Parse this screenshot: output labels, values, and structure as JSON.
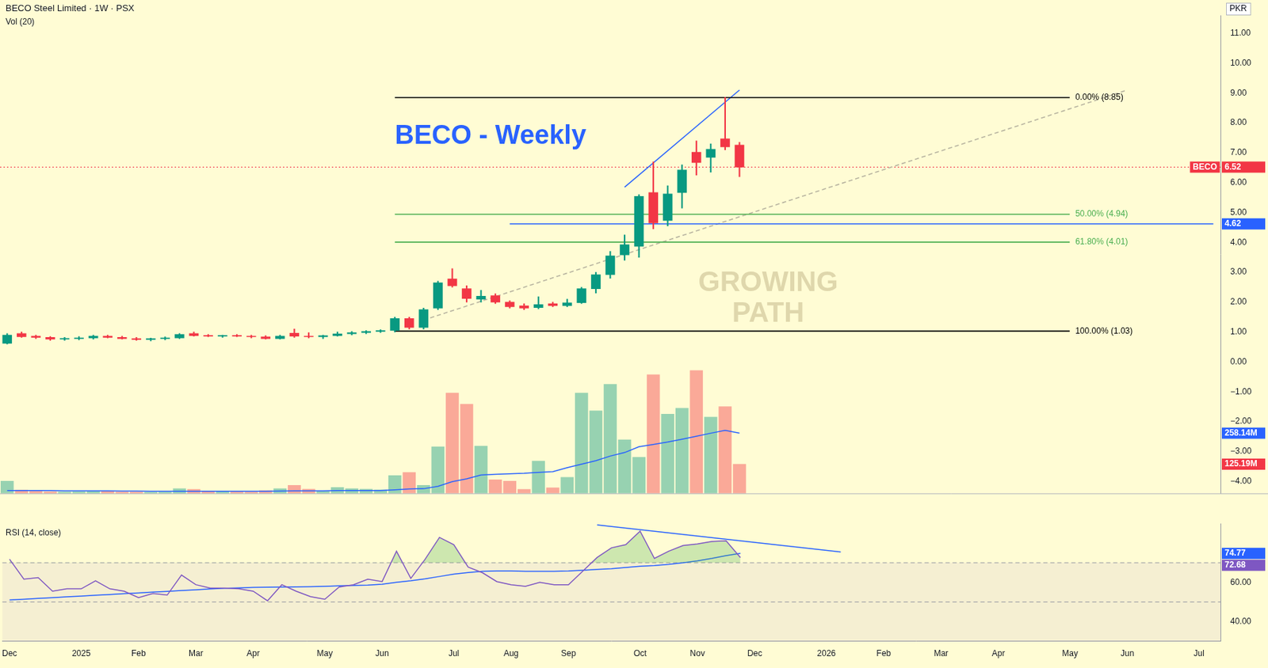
{
  "chart_data": [
    {
      "type": "candlestick",
      "title": "BECO - Weekly",
      "subtitle": "BECO Steel Limited · 1W · PSX",
      "ylabel": "PKR",
      "watermark": "GROWING PATH",
      "tick_labels": "y",
      "grid": false,
      "categories": [
        "Dec",
        null,
        null,
        null,
        null,
        "2025",
        null,
        null,
        null,
        "Feb",
        null,
        null,
        null,
        "Mar",
        null,
        null,
        null,
        "Apr",
        null,
        null,
        null,
        null,
        "May",
        null,
        null,
        null,
        "Jun",
        null,
        null,
        null,
        null,
        "Jul",
        null,
        null,
        null,
        "Aug",
        null,
        null,
        null,
        "Sep",
        null,
        null,
        null,
        null,
        "Oct",
        null,
        null,
        null,
        "Nov",
        null,
        null,
        null,
        "Dec",
        null,
        null,
        null,
        null,
        "2026",
        null,
        null,
        null,
        "Feb",
        null,
        null,
        null,
        "Mar",
        null,
        null,
        null,
        "Apr",
        null,
        null,
        null,
        null,
        "May",
        null,
        null,
        null,
        "Jun",
        null,
        null,
        null,
        null,
        "Jul",
        null
      ],
      "ylim": [
        -4.4,
        11.6
      ],
      "yticks": [
        {
          "value": -4,
          "label": "−4.00"
        },
        {
          "value": -3,
          "label": "−3.00"
        },
        {
          "value": -2,
          "label": "−2.00"
        },
        {
          "value": -1,
          "label": "−1.00"
        },
        {
          "value": 0,
          "label": "0.00"
        },
        {
          "value": 1,
          "label": "1.00"
        },
        {
          "value": 2,
          "label": "2.00"
        },
        {
          "value": 3,
          "label": "3.00"
        },
        {
          "value": 4,
          "label": "4.00"
        },
        {
          "value": 5,
          "label": "5.00"
        },
        {
          "value": 6,
          "label": "6.00"
        },
        {
          "value": 7,
          "label": "7.00"
        },
        {
          "value": 8,
          "label": "8.00"
        },
        {
          "value": 9,
          "label": "9.00"
        },
        {
          "value": 10,
          "label": "10.00"
        },
        {
          "value": 11,
          "label": "11.00"
        }
      ],
      "y2lim": [
        0,
        2050
      ],
      "series": [
        {
          "name": "BECO",
          "type": "candlestick",
          "color": {
            "up": "#089981",
            "down": "#f23645"
          },
          "end_label": "6.52",
          "open": [
            0.62,
            0.95,
            0.86,
            0.82,
            0.76,
            0.78,
            0.8,
            0.86,
            0.82,
            0.78,
            0.75,
            0.78,
            0.8,
            0.95,
            0.88,
            0.86,
            0.88,
            0.86,
            0.84,
            0.78,
            0.96,
            0.86,
            0.84,
            0.88,
            0.94,
            0.98,
            1.02,
            1.05,
            1.45,
            1.15,
            1.8,
            2.78,
            2.45,
            2.1,
            2.22,
            2.0,
            1.88,
            1.82,
            1.95,
            1.88,
            1.98,
            2.45,
            2.92,
            3.58,
            3.87,
            5.67,
            4.73,
            5.67,
            7.02,
            6.85,
            7.47,
            7.26,
            null,
            null,
            null,
            null,
            null,
            null,
            null,
            null,
            null,
            null,
            null,
            null,
            null,
            null,
            null,
            null,
            null,
            null,
            null,
            null,
            null,
            null,
            null,
            null,
            null,
            null,
            null,
            null,
            null,
            null,
            null,
            null,
            null
          ],
          "high": [
            0.95,
            1.0,
            0.9,
            0.85,
            0.82,
            0.85,
            0.9,
            0.9,
            0.86,
            0.82,
            0.8,
            0.84,
            0.95,
            1.0,
            0.92,
            0.9,
            0.92,
            0.9,
            0.88,
            0.9,
            1.1,
            0.98,
            0.9,
            1.0,
            1.02,
            1.05,
            1.08,
            1.5,
            1.5,
            1.8,
            2.7,
            3.12,
            2.55,
            2.4,
            2.28,
            2.05,
            1.95,
            2.18,
            2.0,
            2.1,
            2.5,
            3.0,
            3.7,
            4.25,
            5.6,
            6.7,
            5.9,
            6.6,
            7.4,
            7.3,
            8.85,
            7.35,
            null,
            null,
            null,
            null,
            null,
            null,
            null,
            null,
            null,
            null,
            null,
            null,
            null,
            null,
            null,
            null,
            null,
            null,
            null,
            null,
            null,
            null,
            null,
            null,
            null,
            null,
            null,
            null,
            null,
            null,
            null,
            null,
            null
          ],
          "low": [
            0.6,
            0.82,
            0.78,
            0.72,
            0.72,
            0.74,
            0.76,
            0.8,
            0.76,
            0.72,
            0.7,
            0.74,
            0.78,
            0.86,
            0.84,
            0.82,
            0.84,
            0.8,
            0.76,
            0.76,
            0.82,
            0.8,
            0.78,
            0.86,
            0.9,
            0.94,
            0.98,
            1.0,
            1.1,
            1.1,
            1.75,
            2.5,
            2.0,
            2.0,
            1.95,
            1.8,
            1.75,
            1.78,
            1.85,
            1.85,
            1.95,
            2.3,
            2.8,
            3.4,
            3.5,
            4.45,
            4.55,
            5.15,
            6.25,
            6.35,
            7.1,
            6.2,
            null,
            null,
            null,
            null,
            null,
            null,
            null,
            null,
            null,
            null,
            null,
            null,
            null,
            null,
            null,
            null,
            null,
            null,
            null,
            null,
            null,
            null,
            null,
            null,
            null,
            null,
            null,
            null,
            null,
            null,
            null,
            null,
            null
          ],
          "close": [
            0.9,
            0.84,
            0.82,
            0.76,
            0.78,
            0.8,
            0.86,
            0.82,
            0.78,
            0.75,
            0.78,
            0.8,
            0.92,
            0.88,
            0.86,
            0.88,
            0.86,
            0.84,
            0.78,
            0.86,
            0.86,
            0.84,
            0.88,
            0.94,
            0.98,
            1.02,
            1.05,
            1.45,
            1.15,
            1.75,
            2.65,
            2.55,
            2.12,
            2.2,
            2.0,
            1.85,
            1.8,
            1.92,
            1.88,
            1.98,
            2.45,
            2.92,
            3.55,
            3.92,
            5.54,
            4.65,
            5.62,
            6.42,
            6.67,
            7.12,
            7.2,
            6.52,
            null,
            null,
            null,
            null,
            null,
            null,
            null,
            null,
            null,
            null,
            null,
            null,
            null,
            null,
            null,
            null,
            null,
            null,
            null,
            null,
            null,
            null,
            null,
            null,
            null,
            null,
            null,
            null,
            null,
            null,
            null,
            null,
            null
          ]
        },
        {
          "name": "Vol (20)",
          "type": "bar",
          "axis": "y2",
          "end_label": "125.19M",
          "values": [
            52,
            14,
            10,
            7,
            6,
            7,
            10,
            8,
            6,
            6,
            5,
            6,
            20,
            17,
            8,
            10,
            7,
            6,
            12,
            20,
            34,
            18,
            10,
            25,
            20,
            18,
            15,
            76,
            90,
            34,
            200,
            430,
            382,
            203,
            58,
            52,
            17,
            138,
            24,
            69,
            430,
            354,
            468,
            230,
            155,
            509,
            340,
            365,
            527,
            327,
            372,
            125.19,
            null,
            null,
            null,
            null,
            null,
            null,
            null,
            null,
            null,
            null,
            null,
            null,
            null,
            null,
            null,
            null,
            null,
            null,
            null,
            null,
            null,
            null,
            null,
            null,
            null,
            null,
            null,
            null,
            null,
            null,
            null,
            null,
            null
          ]
        },
        {
          "type": "line",
          "axis": "y2",
          "color": "#2962ff",
          "end_label": "258.14M",
          "values": [
            12,
            12,
            12,
            12,
            11,
            11,
            11,
            11,
            10,
            10,
            9,
            9,
            9,
            9,
            9,
            9,
            9,
            9,
            9,
            10,
            11,
            11,
            11,
            12,
            12,
            12,
            12,
            15,
            19,
            20,
            30,
            50,
            62,
            79,
            82,
            84,
            86,
            90,
            93,
            110,
            125,
            140,
            160,
            175,
            200,
            210,
            220,
            232,
            245,
            258,
            270,
            258.14,
            null,
            null,
            null,
            null,
            null,
            null,
            null,
            null,
            null,
            null,
            null,
            null,
            null,
            null,
            null,
            null,
            null,
            null,
            null,
            null,
            null,
            null,
            null,
            null,
            null,
            null,
            null,
            null,
            null,
            null,
            null,
            null,
            null
          ]
        }
      ],
      "lines": [
        {
          "label": "0.00% (8.85)",
          "from": [
            27,
            8.85
          ],
          "to": [
            74,
            8.85
          ],
          "color": "#000000"
        },
        {
          "label": "50.00% (4.94)",
          "from": [
            27,
            4.94
          ],
          "to": [
            74,
            4.94
          ],
          "color": "#4caf50"
        },
        {
          "label": "61.80% (4.01)",
          "from": [
            27,
            4.01
          ],
          "to": [
            74,
            4.01
          ],
          "color": "#4caf50"
        },
        {
          "label": "100.00% (1.03)",
          "from": [
            27,
            1.03
          ],
          "to": [
            74,
            1.03
          ],
          "color": "#000000"
        },
        {
          "from": [
            35,
            4.62
          ],
          "to": [
            84,
            4.62
          ],
          "color": "#2962ff",
          "end_label": "4.62"
        },
        {
          "from": [
            43,
            5.85
          ],
          "to": [
            51,
            9.1
          ],
          "color": "#2962ff"
        },
        {
          "from": [
            29,
            1.4
          ],
          "to": [
            78,
            9.1
          ],
          "color": "#b8b4a0",
          "line_style": "dashed"
        }
      ]
    },
    {
      "type": "line",
      "title": "RSI (14, close)",
      "grid": false,
      "categories": [
        "Dec",
        null,
        null,
        null,
        null,
        "2025",
        null,
        null,
        null,
        "Feb",
        null,
        null,
        null,
        "Mar",
        null,
        null,
        null,
        "Apr",
        null,
        null,
        null,
        null,
        "May",
        null,
        null,
        null,
        "Jun",
        null,
        null,
        null,
        null,
        "Jul",
        null,
        null,
        null,
        "Aug",
        null,
        null,
        null,
        "Sep",
        null,
        null,
        null,
        null,
        "Oct",
        null,
        null,
        null,
        "Nov",
        null,
        null,
        null,
        "Dec",
        null,
        null,
        null,
        null,
        "2026",
        null,
        null,
        null,
        "Feb",
        null,
        null,
        null,
        "Mar",
        null,
        null,
        null,
        "Apr",
        null,
        null,
        null,
        null,
        "May",
        null,
        null,
        null,
        "Jun",
        null,
        null,
        null,
        null,
        "Jul",
        null
      ],
      "ylim": [
        30,
        90
      ],
      "yticks": [
        {
          "value": 40,
          "label": "40.00"
        },
        {
          "value": 60,
          "label": "60.00"
        }
      ],
      "band": [
        30,
        70
      ],
      "hlines": [
        {
          "value": 70,
          "line_style": "dashed"
        },
        {
          "value": 50,
          "line_style": "dashed"
        }
      ],
      "series": [
        {
          "type": "line",
          "color": "#7e57c2",
          "overbought": 70,
          "end_label": "72.68",
          "values": [
            71.8,
            61.6,
            62.4,
            55.5,
            56.7,
            56.7,
            60.8,
            56.7,
            55.5,
            52.2,
            54.3,
            53.5,
            63.7,
            58.8,
            57.1,
            57.1,
            56.7,
            55.5,
            50.6,
            58.8,
            55.5,
            52.7,
            51.4,
            57.6,
            58.8,
            61.6,
            60.4,
            75.9,
            62.0,
            71.8,
            82.9,
            79.2,
            67.8,
            64.9,
            60.4,
            58.8,
            58.0,
            60.0,
            58.8,
            58.8,
            65.7,
            72.7,
            77.6,
            79.2,
            86.1,
            72.2,
            75.9,
            78.8,
            79.6,
            80.8,
            81.2,
            72.68,
            null,
            null,
            null,
            null,
            null,
            null,
            null,
            null,
            null,
            null,
            null,
            null,
            null,
            null,
            null,
            null,
            null,
            null,
            null,
            null,
            null,
            null,
            null,
            null,
            null,
            null,
            null,
            null,
            null,
            null,
            null,
            null,
            null
          ]
        },
        {
          "type": "line",
          "color": "#2962ff",
          "end_label": "74.77",
          "values": [
            51.0,
            51.4,
            51.8,
            52.2,
            52.6,
            53.0,
            53.4,
            53.8,
            54.2,
            54.6,
            55.0,
            55.4,
            55.8,
            56.2,
            56.6,
            57.0,
            57.2,
            57.4,
            57.5,
            57.6,
            57.7,
            57.8,
            58.0,
            58.2,
            58.4,
            58.6,
            59.0,
            60.0,
            60.8,
            61.8,
            63.0,
            64.2,
            65.0,
            65.6,
            65.8,
            65.8,
            65.6,
            65.6,
            65.6,
            65.8,
            66.2,
            66.6,
            67.0,
            67.6,
            68.2,
            68.6,
            69.2,
            70.0,
            71.0,
            72.2,
            73.6,
            74.77,
            null,
            null,
            null,
            null,
            null,
            null,
            null,
            null,
            null,
            null,
            null,
            null,
            null,
            null,
            null,
            null,
            null,
            null,
            null,
            null,
            null,
            null,
            null,
            null,
            null,
            null,
            null,
            null,
            null,
            null,
            null,
            null,
            null
          ]
        }
      ],
      "lines": [
        {
          "from": [
            41,
            89.3
          ],
          "to": [
            58,
            75.5
          ],
          "color": "#2962ff"
        }
      ]
    }
  ]
}
